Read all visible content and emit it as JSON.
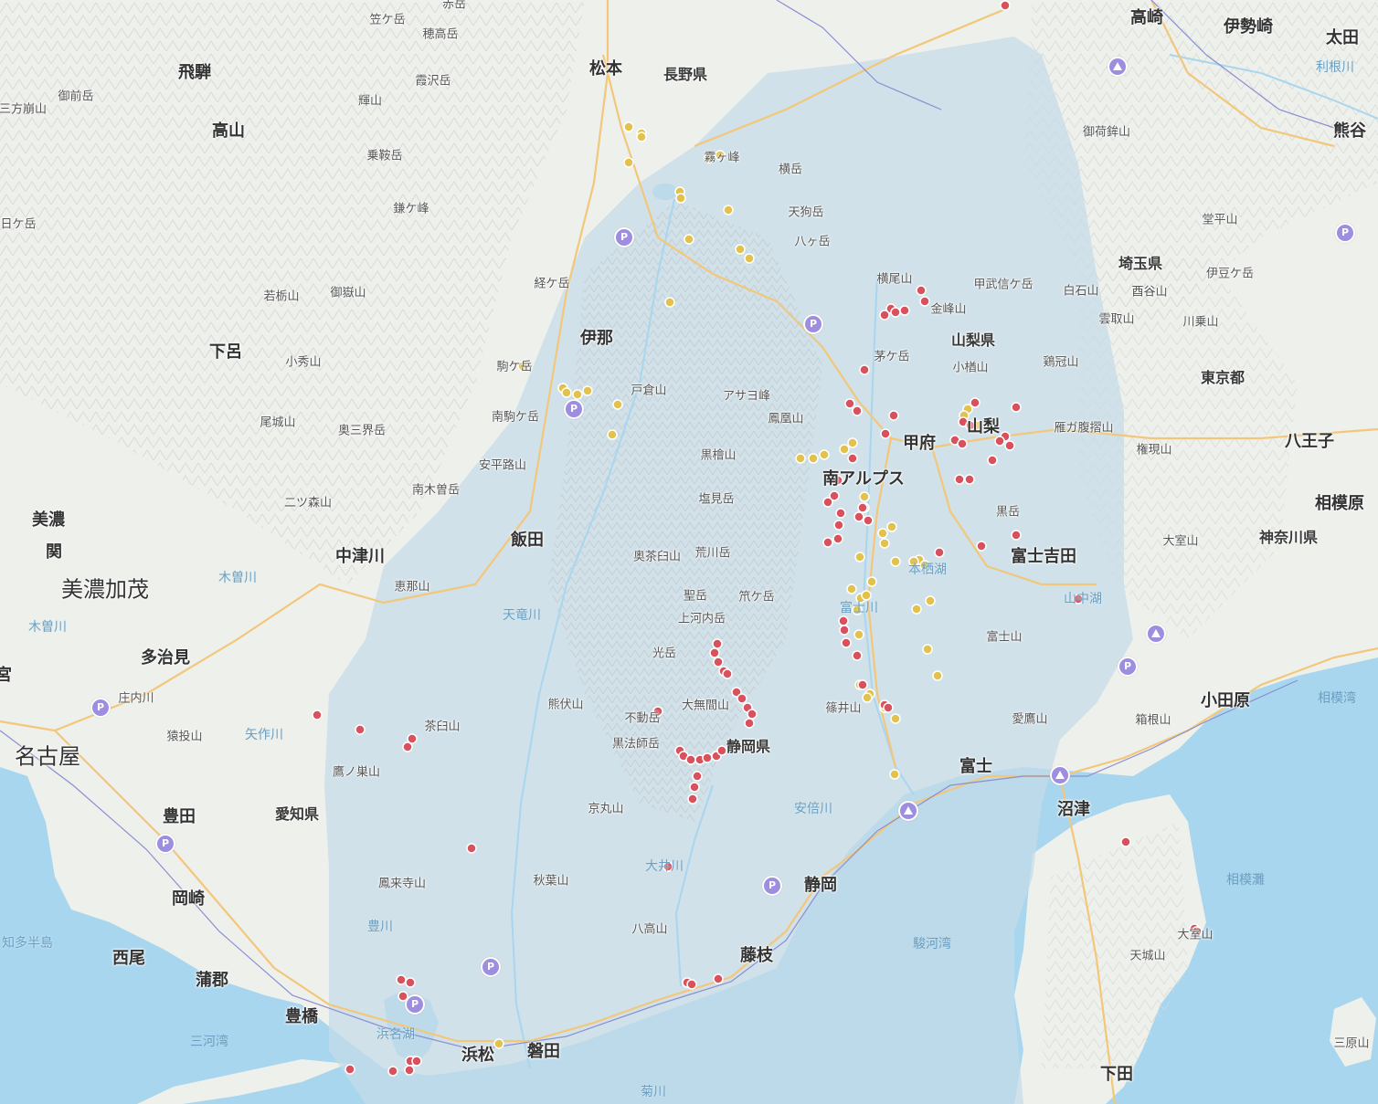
{
  "map": {
    "colors": {
      "land": "#eef0ec",
      "sea": "#a9d6ef",
      "highlight_region": "#c5dbe8",
      "road_major": "#f3c77a",
      "road_minor": "#ffffff",
      "rail": "#8a8fd0",
      "dot_red": "#d9515d",
      "dot_yellow": "#e2c24c",
      "poi_marker": "#9e8ee0"
    },
    "cities_big": [
      {
        "id": "nagoya",
        "label": "名古屋"
      },
      {
        "id": "minokamo",
        "label": "美濃加茂"
      }
    ],
    "cities": [
      {
        "id": "takasaki",
        "label": "高崎"
      },
      {
        "id": "isesaki",
        "label": "伊勢崎"
      },
      {
        "id": "ota",
        "label": "太田"
      },
      {
        "id": "kumagaya",
        "label": "熊谷"
      },
      {
        "id": "matsumoto",
        "label": "松本"
      },
      {
        "id": "hida",
        "label": "飛騨"
      },
      {
        "id": "takayama",
        "label": "高山"
      },
      {
        "id": "gero",
        "label": "下呂"
      },
      {
        "id": "ina",
        "label": "伊那"
      },
      {
        "id": "iida",
        "label": "飯田"
      },
      {
        "id": "nakatsugawa",
        "label": "中津川"
      },
      {
        "id": "mino",
        "label": "美濃"
      },
      {
        "id": "seki",
        "label": "関"
      },
      {
        "id": "tajimi",
        "label": "多治見"
      },
      {
        "id": "toyota",
        "label": "豊田"
      },
      {
        "id": "okazaki",
        "label": "岡崎"
      },
      {
        "id": "nishio",
        "label": "西尾"
      },
      {
        "id": "gamagori",
        "label": "蒲郡"
      },
      {
        "id": "toyohashi",
        "label": "豊橋"
      },
      {
        "id": "hamamatsu",
        "label": "浜松"
      },
      {
        "id": "iwata",
        "label": "磐田"
      },
      {
        "id": "fujieda",
        "label": "藤枝"
      },
      {
        "id": "shizuoka",
        "label": "静岡"
      },
      {
        "id": "fuji",
        "label": "富士"
      },
      {
        "id": "numazu",
        "label": "沼津"
      },
      {
        "id": "odawara",
        "label": "小田原"
      },
      {
        "id": "fujiyoshida",
        "label": "富士吉田"
      },
      {
        "id": "kofu",
        "label": "甲府"
      },
      {
        "id": "minamialps",
        "label": "南アルプス"
      },
      {
        "id": "hachioji",
        "label": "八王子"
      },
      {
        "id": "sagamihara",
        "label": "相模原"
      },
      {
        "id": "shimoda",
        "label": "下田"
      },
      {
        "id": "miyako",
        "label": "宮"
      },
      {
        "id": "yamanashi",
        "label": "山梨"
      }
    ],
    "prefectures": [
      {
        "id": "nagano",
        "label": "長野県"
      },
      {
        "id": "yamanashi",
        "label": "山梨県"
      },
      {
        "id": "saitama",
        "label": "埼玉県"
      },
      {
        "id": "tokyo",
        "label": "東京都"
      },
      {
        "id": "kanagawa",
        "label": "神奈川県"
      },
      {
        "id": "shizuoka",
        "label": "静岡県"
      },
      {
        "id": "aichi",
        "label": "愛知県"
      }
    ],
    "peaks": [
      {
        "label": "笠ケ岳"
      },
      {
        "label": "赤岳"
      },
      {
        "label": "穂高岳"
      },
      {
        "label": "霞沢岳"
      },
      {
        "label": "御前岳"
      },
      {
        "label": "三方崩山"
      },
      {
        "label": "輝山"
      },
      {
        "label": "乗鞍岳"
      },
      {
        "label": "鎌ケ峰"
      },
      {
        "label": "霧ヶ峰"
      },
      {
        "label": "横岳"
      },
      {
        "label": "天狗岳"
      },
      {
        "label": "八ヶ岳"
      },
      {
        "label": "御荷鉾山"
      },
      {
        "label": "堂平山"
      },
      {
        "label": "日ケ岳"
      },
      {
        "label": "若栃山"
      },
      {
        "label": "御嶽山"
      },
      {
        "label": "経ケ岳"
      },
      {
        "label": "横尾山"
      },
      {
        "label": "甲武信ケ岳"
      },
      {
        "label": "白石山"
      },
      {
        "label": "酉谷山"
      },
      {
        "label": "伊豆ケ岳"
      },
      {
        "label": "金峰山"
      },
      {
        "label": "雲取山"
      },
      {
        "label": "川乗山"
      },
      {
        "label": "小秀山"
      },
      {
        "label": "茅ケ岳"
      },
      {
        "label": "駒ケ岳"
      },
      {
        "label": "戸倉山"
      },
      {
        "label": "小楢山"
      },
      {
        "label": "鶏冠山"
      },
      {
        "label": "アサヨ峰"
      },
      {
        "label": "南駒ケ岳"
      },
      {
        "label": "鳳凰山"
      },
      {
        "label": "尾城山"
      },
      {
        "label": "奥三界岳"
      },
      {
        "label": "雁ガ腹摺山"
      },
      {
        "label": "黒檜山"
      },
      {
        "label": "権現山"
      },
      {
        "label": "安平路山"
      },
      {
        "label": "南木曽岳"
      },
      {
        "label": "塩見岳"
      },
      {
        "label": "二ツ森山"
      },
      {
        "label": "黒岳"
      },
      {
        "label": "大室山"
      },
      {
        "label": "奥茶臼山"
      },
      {
        "label": "荒川岳"
      },
      {
        "label": "恵那山"
      },
      {
        "label": "聖岳"
      },
      {
        "label": "笊ケ岳"
      },
      {
        "label": "上河内岳"
      },
      {
        "label": "富士山"
      },
      {
        "label": "光岳"
      },
      {
        "label": "熊伏山"
      },
      {
        "label": "大無間山"
      },
      {
        "label": "篠井山"
      },
      {
        "label": "不動岳"
      },
      {
        "label": "愛鷹山"
      },
      {
        "label": "茶臼山"
      },
      {
        "label": "黒法師岳"
      },
      {
        "label": "箱根山"
      },
      {
        "label": "猿投山"
      },
      {
        "label": "鷹ノ巣山"
      },
      {
        "label": "京丸山"
      },
      {
        "label": "鳳来寺山"
      },
      {
        "label": "秋葉山"
      },
      {
        "label": "八高山"
      },
      {
        "label": "天城山"
      },
      {
        "label": "三原山"
      },
      {
        "label": "大室山"
      },
      {
        "label": "庄内川"
      }
    ],
    "water_labels": [
      {
        "label": "利根川"
      },
      {
        "label": "木曽川"
      },
      {
        "label": "木曽川"
      },
      {
        "label": "天竜川"
      },
      {
        "label": "矢作川"
      },
      {
        "label": "豊川"
      },
      {
        "label": "浜名湖"
      },
      {
        "label": "菊川"
      },
      {
        "label": "大井川"
      },
      {
        "label": "安倍川"
      },
      {
        "label": "富士川"
      },
      {
        "label": "本栖湖"
      },
      {
        "label": "山中湖"
      },
      {
        "label": "駿河湾"
      },
      {
        "label": "三河湾"
      },
      {
        "label": "相模湾"
      },
      {
        "label": "相模灘"
      },
      {
        "label": "知多半島"
      }
    ],
    "poi_park_label": "P"
  }
}
